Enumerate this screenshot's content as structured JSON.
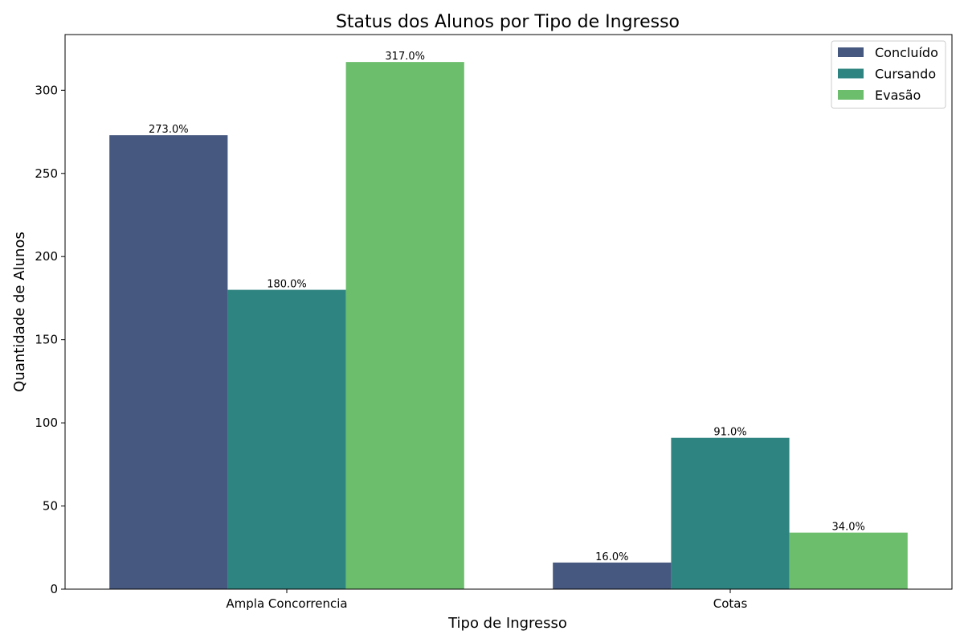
{
  "chart_data": {
    "type": "bar",
    "title": "Status dos Alunos por Tipo de Ingresso",
    "xlabel": "Tipo de Ingresso",
    "ylabel": "Quantidade de Alunos",
    "categories": [
      "Ampla Concorrencia",
      "Cotas"
    ],
    "series": [
      {
        "name": "Concluído",
        "color": "#46587f",
        "values": [
          273,
          16
        ],
        "labels": [
          "273.0%",
          "16.0%"
        ]
      },
      {
        "name": "Cursando",
        "color": "#2e8480",
        "values": [
          180,
          91
        ],
        "labels": [
          "180.0%",
          "91.0%"
        ]
      },
      {
        "name": "Evasão",
        "color": "#6cbd6c",
        "values": [
          317,
          34
        ],
        "labels": [
          "317.0%",
          "34.0%"
        ]
      }
    ],
    "ylim": [
      0,
      333.5
    ],
    "yticks": [
      0,
      50,
      100,
      150,
      200,
      250,
      300
    ],
    "grid": false,
    "legend_position": "top-right"
  }
}
